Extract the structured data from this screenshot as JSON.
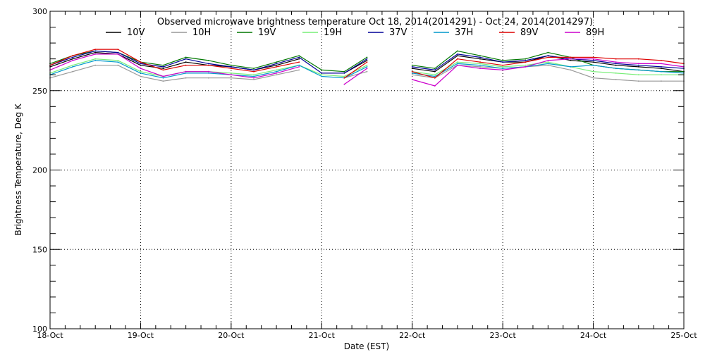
{
  "chart_data": {
    "type": "line",
    "title": "Observed microwave brightness temperature Oct 18, 2014(2014291) - Oct 24, 2014(2014297)",
    "xlabel": "Date (EST)",
    "ylabel": "Brightness Temperature, Deg K",
    "ylim": [
      100,
      300
    ],
    "xlim": [
      "2014-10-18",
      "2014-10-25"
    ],
    "x_tick_labels": [
      "18-Oct",
      "19-Oct",
      "20-Oct",
      "21-Oct",
      "22-Oct",
      "23-Oct",
      "24-Oct",
      "25-Oct"
    ],
    "y_tick_labels": [
      "100",
      "150",
      "200",
      "250",
      "300"
    ],
    "grid": true,
    "legend_position": "top",
    "x_dates": [
      "2014-10-18 00:00",
      "2014-10-18 06:00",
      "2014-10-18 12:00",
      "2014-10-18 18:00",
      "2014-10-19 00:00",
      "2014-10-19 06:00",
      "2014-10-19 12:00",
      "2014-10-19 18:00",
      "2014-10-20 00:00",
      "2014-10-20 06:00",
      "2014-10-20 12:00",
      "2014-10-20 18:00",
      "2014-10-21 00:00",
      "2014-10-21 06:00",
      "2014-10-21 12:00",
      "2014-10-21 18:00",
      "2014-10-22 00:00",
      "2014-10-22 06:00",
      "2014-10-22 12:00",
      "2014-10-22 18:00",
      "2014-10-23 00:00",
      "2014-10-23 06:00",
      "2014-10-23 12:00",
      "2014-10-23 18:00",
      "2014-10-24 00:00",
      "2014-10-24 06:00",
      "2014-10-24 12:00",
      "2014-10-24 18:00",
      "2014-10-25 00:00"
    ],
    "series": [
      {
        "name": "10V",
        "color": "#000000",
        "values": [
          265,
          270,
          274,
          273,
          266,
          264,
          268,
          266,
          265,
          263,
          266,
          270,
          null,
          261,
          269,
          null,
          264,
          262,
          272,
          270,
          268,
          268,
          272,
          269,
          268,
          266,
          265,
          264,
          262
        ]
      },
      {
        "name": "10H",
        "color": "#999999",
        "values": [
          258,
          262,
          266,
          266,
          259,
          256,
          258,
          258,
          258,
          257,
          260,
          263,
          null,
          258,
          262,
          null,
          260,
          258,
          266,
          265,
          264,
          265,
          266,
          263,
          258,
          257,
          256,
          256,
          256
        ]
      },
      {
        "name": "19V",
        "color": "#007700",
        "values": [
          267,
          272,
          275,
          274,
          268,
          266,
          271,
          269,
          266,
          264,
          268,
          272,
          263,
          262,
          271,
          null,
          266,
          264,
          275,
          272,
          269,
          270,
          274,
          271,
          266,
          264,
          263,
          262,
          262
        ]
      },
      {
        "name": "19H",
        "color": "#77ee77",
        "values": [
          261,
          266,
          270,
          269,
          262,
          259,
          262,
          262,
          261,
          260,
          263,
          266,
          260,
          259,
          266,
          null,
          262,
          260,
          268,
          267,
          265,
          266,
          268,
          265,
          262,
          261,
          260,
          260,
          260
        ]
      },
      {
        "name": "37V",
        "color": "#000099",
        "values": [
          266,
          271,
          275,
          274,
          267,
          265,
          270,
          267,
          265,
          263,
          267,
          271,
          261,
          261,
          270,
          null,
          265,
          263,
          273,
          271,
          268,
          269,
          272,
          270,
          269,
          267,
          266,
          265,
          264
        ]
      },
      {
        "name": "37H",
        "color": "#0099cc",
        "values": [
          260,
          265,
          269,
          268,
          261,
          258,
          261,
          261,
          260,
          259,
          262,
          266,
          259,
          258,
          265,
          null,
          261,
          259,
          267,
          266,
          264,
          265,
          267,
          265,
          266,
          264,
          263,
          262,
          261
        ]
      },
      {
        "name": "89V",
        "color": "#dd0000",
        "values": [
          266,
          272,
          276,
          276,
          268,
          263,
          266,
          266,
          264,
          262,
          265,
          268,
          null,
          258,
          268,
          null,
          262,
          258,
          270,
          268,
          266,
          268,
          271,
          271,
          271,
          270,
          270,
          269,
          267
        ]
      },
      {
        "name": "89H",
        "color": "#cc00cc",
        "values": [
          263,
          269,
          273,
          273,
          264,
          259,
          262,
          262,
          260,
          258,
          261,
          265,
          null,
          254,
          264,
          null,
          257,
          253,
          266,
          264,
          263,
          265,
          269,
          270,
          270,
          268,
          267,
          267,
          265
        ]
      }
    ]
  }
}
